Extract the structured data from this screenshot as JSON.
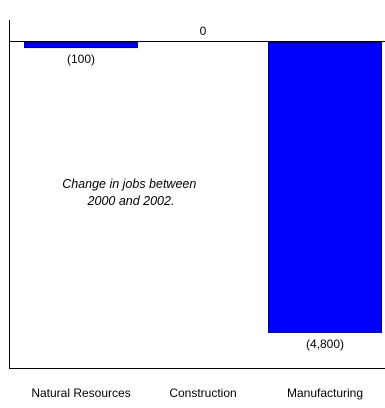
{
  "chart_data": {
    "type": "bar",
    "categories": [
      "Natural Resources",
      "Construction",
      "Manufacturing"
    ],
    "values": [
      -100,
      0,
      -4800
    ],
    "value_labels": [
      "(100)",
      "0",
      "(4,800)"
    ],
    "annotation_lines": [
      "Change in jobs between",
      "2000 and 2002."
    ],
    "ylim": [
      -4900,
      0
    ],
    "bar_color": "#0000ff",
    "bar_edge_color": "#000080",
    "frame_color": "#000000",
    "grid": false,
    "legend": "none"
  }
}
